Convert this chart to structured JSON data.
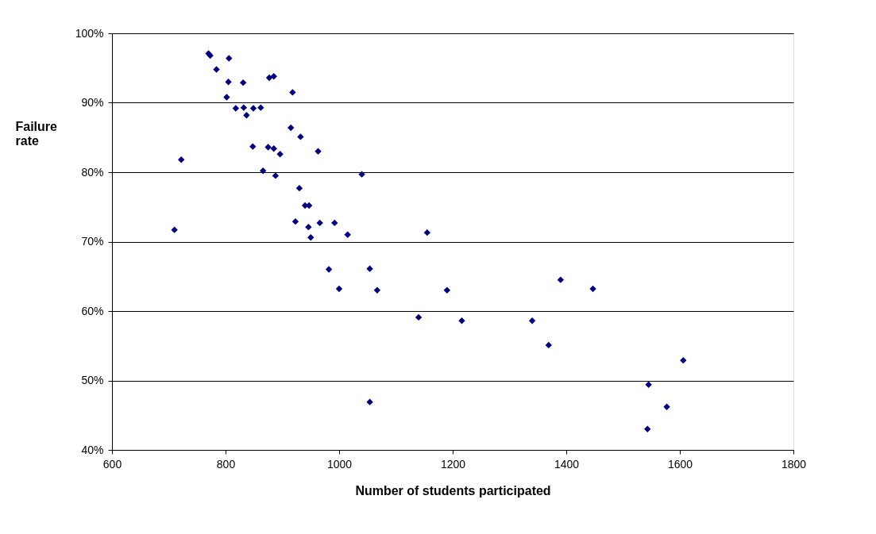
{
  "chart_data": {
    "type": "scatter",
    "xlabel": "Number of students participated",
    "ylabel": "Failure rate",
    "x": [
      770,
      773,
      806,
      784,
      877,
      885,
      831,
      805,
      918,
      802,
      818,
      832,
      849,
      862,
      837,
      915,
      932,
      848,
      875,
      885,
      896,
      963,
      722,
      866,
      888,
      1040,
      930,
      940,
      947,
      923,
      946,
      966,
      992,
      950,
      1015,
      710,
      1155,
      982,
      1000,
      1054,
      1067,
      1190,
      1140,
      1216,
      1340,
      1390,
      1447,
      1369,
      1606,
      1545,
      1577,
      1054,
      1543
    ],
    "series": [
      {
        "color": "#000080",
        "values": [
          97.1,
          96.8,
          96.4,
          94.8,
          93.6,
          93.8,
          92.9,
          93.0,
          91.5,
          90.8,
          89.2,
          89.3,
          89.2,
          89.3,
          88.2,
          86.4,
          85.1,
          83.7,
          83.6,
          83.4,
          82.6,
          83.0,
          81.8,
          80.2,
          79.5,
          79.7,
          77.7,
          75.2,
          75.2,
          72.9,
          72.1,
          72.7,
          72.7,
          70.6,
          71.0,
          71.7,
          71.3,
          66.0,
          63.2,
          66.1,
          63.0,
          63.0,
          59.1,
          58.6,
          58.6,
          64.5,
          63.2,
          55.1,
          52.9,
          49.4,
          46.2,
          46.9,
          43.0
        ]
      }
    ],
    "xlim": [
      600,
      1800
    ],
    "xticks": [
      600,
      800,
      1000,
      1200,
      1400,
      1600,
      1800
    ],
    "ylim": [
      40,
      100
    ],
    "yticks": [
      {
        "value": 40,
        "label": "40%"
      },
      {
        "value": 50,
        "label": "50%"
      },
      {
        "value": 60,
        "label": "60%"
      },
      {
        "value": 70,
        "label": "70%"
      },
      {
        "value": 80,
        "label": "80%"
      },
      {
        "value": 90,
        "label": "90%"
      },
      {
        "value": 100,
        "label": "100%"
      }
    ],
    "grid": "y",
    "legend": false,
    "marker": "diamond"
  }
}
